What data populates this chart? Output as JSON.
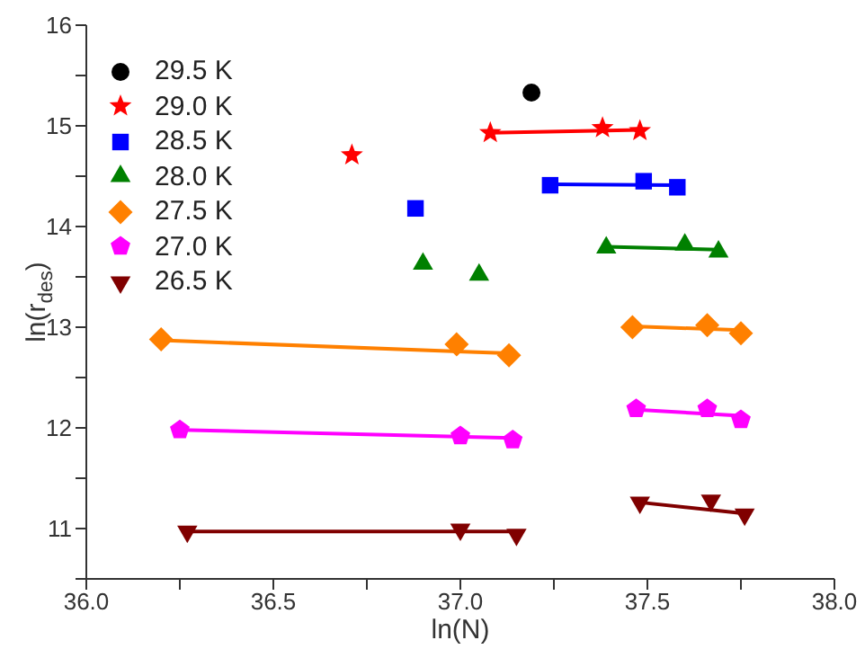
{
  "chart_data": {
    "type": "scatter",
    "xlabel": "ln(N)",
    "ylabel": "ln(r$_{des}$)",
    "xlim": [
      36.0,
      38.0
    ],
    "ylim": [
      10.5,
      16
    ],
    "xticks": [
      {
        "value": 36.0,
        "label": "36.0"
      },
      {
        "value": 36.25,
        "label": null
      },
      {
        "value": 36.5,
        "label": "36.5"
      },
      {
        "value": 36.75,
        "label": null
      },
      {
        "value": 37.0,
        "label": "37.0"
      },
      {
        "value": 37.25,
        "label": null
      },
      {
        "value": 37.5,
        "label": "37.5"
      },
      {
        "value": 37.75,
        "label": null
      },
      {
        "value": 38.0,
        "label": "38.0"
      }
    ],
    "yticks": [
      {
        "value": 10.5,
        "label": null
      },
      11,
      {
        "value": 11.5,
        "label": null
      },
      12,
      {
        "value": 12.5,
        "label": null
      },
      13,
      {
        "value": 13.5,
        "label": null
      },
      14,
      {
        "value": 14.5,
        "label": null
      },
      15,
      {
        "value": 15.5,
        "label": null
      },
      16
    ],
    "legend": "top left",
    "series": [
      {
        "name": "29.5 K",
        "color": "#000000",
        "marker": "circle",
        "x": [
          37.19
        ],
        "values": [
          15.33
        ]
      },
      {
        "name": "29.0 K",
        "color": "#ff0000",
        "marker": "star",
        "x": [
          36.71,
          37.08,
          37.38,
          37.48
        ],
        "values": [
          14.71,
          14.93,
          14.98,
          14.95
        ]
      },
      {
        "name": "28.5 K",
        "color": "#0000ff",
        "marker": "square",
        "x": [
          36.88,
          37.24,
          37.49,
          37.58
        ],
        "values": [
          14.18,
          14.41,
          14.45,
          14.39
        ]
      },
      {
        "name": "28.0 K",
        "color": "#008000",
        "marker": "triangle",
        "x": [
          36.9,
          37.05,
          37.39,
          37.6,
          37.69
        ],
        "values": [
          13.63,
          13.52,
          13.79,
          13.82,
          13.75
        ]
      },
      {
        "name": "27.5 K",
        "color": "#ff8000",
        "marker": "diamond",
        "x": [
          36.2,
          36.99,
          37.13,
          37.46,
          37.66,
          37.75
        ],
        "values": [
          12.88,
          12.83,
          12.72,
          13.0,
          13.02,
          12.94
        ]
      },
      {
        "name": "27.0 K",
        "color": "#ff00ff",
        "x": [
          36.25,
          37.0,
          37.14,
          37.47,
          37.66,
          37.75
        ],
        "values": [
          11.98,
          11.92,
          11.88,
          12.19,
          12.19,
          12.08
        ]
      },
      {
        "name": "26.5 K",
        "color": "#800000",
        "marker": "triangle-down",
        "x": [
          36.27,
          37.0,
          37.15,
          37.48,
          37.67,
          37.76
        ],
        "values": [
          10.97,
          10.99,
          10.94,
          11.26,
          11.28,
          11.14
        ]
      },
      {
        "type": "line",
        "color": "#ff0000",
        "marker": "none",
        "x": [
          37.08,
          37.48
        ],
        "values": [
          14.93,
          14.96
        ]
      },
      {
        "type": "line",
        "color": "#0000ff",
        "marker": "none",
        "x": [
          37.24,
          37.58
        ],
        "values": [
          14.42,
          14.41
        ]
      },
      {
        "type": "line",
        "color": "#008000",
        "marker": "none",
        "x": [
          37.39,
          37.69
        ],
        "values": [
          13.8,
          13.77
        ]
      },
      {
        "type": "line",
        "color": "#ff8000",
        "marker": "none",
        "x": [
          36.2,
          37.13
        ],
        "values": [
          12.87,
          12.74
        ]
      },
      {
        "type": "line",
        "color": "#ff8000",
        "marker": "none",
        "x": [
          37.46,
          37.75
        ],
        "values": [
          13.01,
          12.97
        ]
      },
      {
        "type": "line",
        "color": "#ff00ff",
        "marker": "none",
        "x": [
          36.25,
          37.14
        ],
        "values": [
          11.98,
          11.9
        ]
      },
      {
        "type": "line",
        "color": "#ff00ff",
        "marker": "none",
        "x": [
          37.47,
          37.75
        ],
        "values": [
          12.18,
          12.12
        ]
      },
      {
        "type": "line",
        "color": "#800000",
        "marker": "none",
        "x": [
          36.27,
          37.15
        ],
        "values": [
          10.97,
          10.97
        ]
      },
      {
        "type": "line",
        "color": "#800000",
        "marker": "none",
        "x": [
          37.48,
          37.76
        ],
        "values": [
          11.26,
          11.15
        ]
      }
    ]
  }
}
